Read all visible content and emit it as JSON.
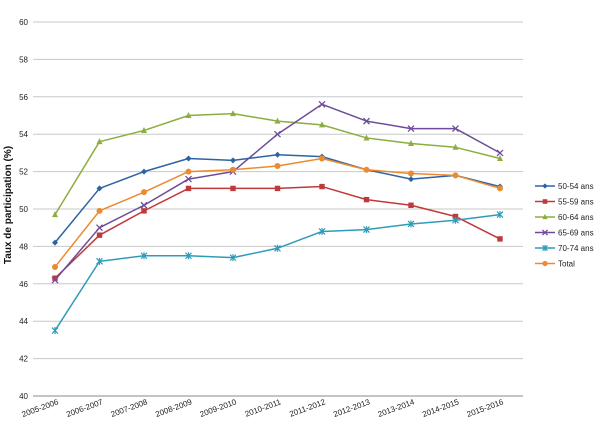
{
  "chart_data": {
    "type": "line",
    "title": "",
    "xlabel": "",
    "ylabel": "Taux de participation (%)",
    "ylim": [
      40,
      60
    ],
    "yticks": [
      40,
      42,
      44,
      46,
      48,
      50,
      52,
      54,
      56,
      58,
      60
    ],
    "grid": true,
    "legend_position": "right",
    "categories": [
      "2005-2006",
      "2006-2007",
      "2007-2008",
      "2008-2009",
      "2009-2010",
      "2010-2011",
      "2011-2012",
      "2012-2013",
      "2013-2014",
      "2014-2015",
      "2015-2016"
    ],
    "series": [
      {
        "name": "50-54 ans",
        "color": "#2e63a3",
        "marker": "diamond",
        "values": [
          48.2,
          51.1,
          52.0,
          52.7,
          52.6,
          52.9,
          52.8,
          52.1,
          51.6,
          51.8,
          51.2
        ]
      },
      {
        "name": "55-59 ans",
        "color": "#c0393b",
        "marker": "square",
        "values": [
          46.3,
          48.6,
          49.9,
          51.1,
          51.1,
          51.1,
          51.2,
          50.5,
          50.2,
          49.6,
          48.4
        ]
      },
      {
        "name": "60-64 ans",
        "color": "#8cad3f",
        "marker": "triangle",
        "values": [
          49.7,
          53.6,
          54.2,
          55.0,
          55.1,
          54.7,
          54.5,
          53.8,
          53.5,
          53.3,
          52.7
        ]
      },
      {
        "name": "65-69 ans",
        "color": "#6e4c9a",
        "marker": "x",
        "values": [
          46.2,
          49.0,
          50.2,
          51.6,
          52.0,
          54.0,
          55.6,
          54.7,
          54.3,
          54.3,
          53.0
        ]
      },
      {
        "name": "70-74 ans",
        "color": "#2e9cb8",
        "marker": "star",
        "values": [
          43.5,
          47.2,
          47.5,
          47.5,
          47.4,
          47.9,
          48.8,
          48.9,
          49.2,
          49.4,
          49.7
        ]
      },
      {
        "name": "Total",
        "color": "#ea8b32",
        "marker": "circle",
        "values": [
          46.9,
          49.9,
          50.9,
          52.0,
          52.1,
          52.3,
          52.7,
          52.1,
          51.9,
          51.8,
          51.1
        ]
      }
    ]
  }
}
